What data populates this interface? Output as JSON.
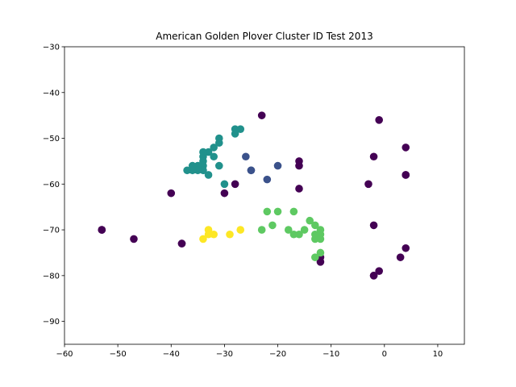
{
  "chart_data": {
    "type": "scatter",
    "title": "American Golden Plover Cluster ID Test 2013",
    "xlabel": "",
    "ylabel": "",
    "xlim": [
      -60,
      15
    ],
    "ylim": [
      -95,
      -30
    ],
    "xticks": [
      -60,
      -50,
      -40,
      -30,
      -20,
      -10,
      0,
      10
    ],
    "yticks": [
      -30,
      -40,
      -50,
      -60,
      -70,
      -80,
      -90
    ],
    "xtick_labels": [
      "−60",
      "−50",
      "−40",
      "−30",
      "−20",
      "−10",
      "0",
      "10"
    ],
    "ytick_labels": [
      "−30",
      "−40",
      "−50",
      "−60",
      "−70",
      "−80",
      "−90"
    ],
    "grid": false,
    "series": [
      {
        "color": "#440154",
        "points": [
          [
            -23,
            -45
          ],
          [
            -1,
            -46
          ],
          [
            4,
            -52
          ],
          [
            -2,
            -54
          ],
          [
            -16,
            -55
          ],
          [
            -16,
            -56
          ],
          [
            4,
            -58
          ],
          [
            4,
            -58
          ],
          [
            -28,
            -60
          ],
          [
            -3,
            -60
          ],
          [
            -16,
            -61
          ],
          [
            -40,
            -62
          ],
          [
            -30,
            -62
          ],
          [
            -2,
            -69
          ],
          [
            -53,
            -70
          ],
          [
            -53,
            -70
          ],
          [
            -47,
            -72
          ],
          [
            -38,
            -73
          ],
          [
            -38,
            -73
          ],
          [
            4,
            -74
          ],
          [
            -12,
            -76
          ],
          [
            3,
            -76
          ],
          [
            -12,
            -77
          ],
          [
            -1,
            -79
          ],
          [
            -2,
            -80
          ],
          [
            -2,
            -80
          ]
        ]
      },
      {
        "color": "#3b528b",
        "points": [
          [
            -26,
            -54
          ],
          [
            -25,
            -57
          ],
          [
            -25,
            -57
          ],
          [
            -20,
            -56
          ],
          [
            -22,
            -59
          ]
        ]
      },
      {
        "color": "#21918c",
        "points": [
          [
            -27,
            -48
          ],
          [
            -28,
            -48
          ],
          [
            -28,
            -49
          ],
          [
            -31,
            -50
          ],
          [
            -31,
            -51
          ],
          [
            -32,
            -52
          ],
          [
            -33,
            -53
          ],
          [
            -34,
            -53
          ],
          [
            -32,
            -54
          ],
          [
            -34,
            -54
          ],
          [
            -34,
            -55
          ],
          [
            -34,
            -56
          ],
          [
            -31,
            -56
          ],
          [
            -35,
            -56
          ],
          [
            -36,
            -56
          ],
          [
            -34,
            -57
          ],
          [
            -35,
            -57
          ],
          [
            -36,
            -57
          ],
          [
            -37,
            -57
          ],
          [
            -33,
            -58
          ],
          [
            -30,
            -60
          ]
        ]
      },
      {
        "color": "#5ec962",
        "points": [
          [
            -22,
            -66
          ],
          [
            -20,
            -66
          ],
          [
            -17,
            -66
          ],
          [
            -14,
            -68
          ],
          [
            -21,
            -69
          ],
          [
            -13,
            -69
          ],
          [
            -23,
            -70
          ],
          [
            -18,
            -70
          ],
          [
            -15,
            -70
          ],
          [
            -12,
            -70
          ],
          [
            -17,
            -71
          ],
          [
            -16,
            -71
          ],
          [
            -13,
            -71
          ],
          [
            -12,
            -71
          ],
          [
            -13,
            -72
          ],
          [
            -12,
            -72
          ],
          [
            -12,
            -75
          ],
          [
            -13,
            -76
          ]
        ]
      },
      {
        "color": "#fde725",
        "points": [
          [
            -33,
            -70
          ],
          [
            -27,
            -70
          ],
          [
            -32,
            -71
          ],
          [
            -29,
            -71
          ],
          [
            -33,
            -71
          ],
          [
            -34,
            -72
          ]
        ]
      }
    ]
  }
}
